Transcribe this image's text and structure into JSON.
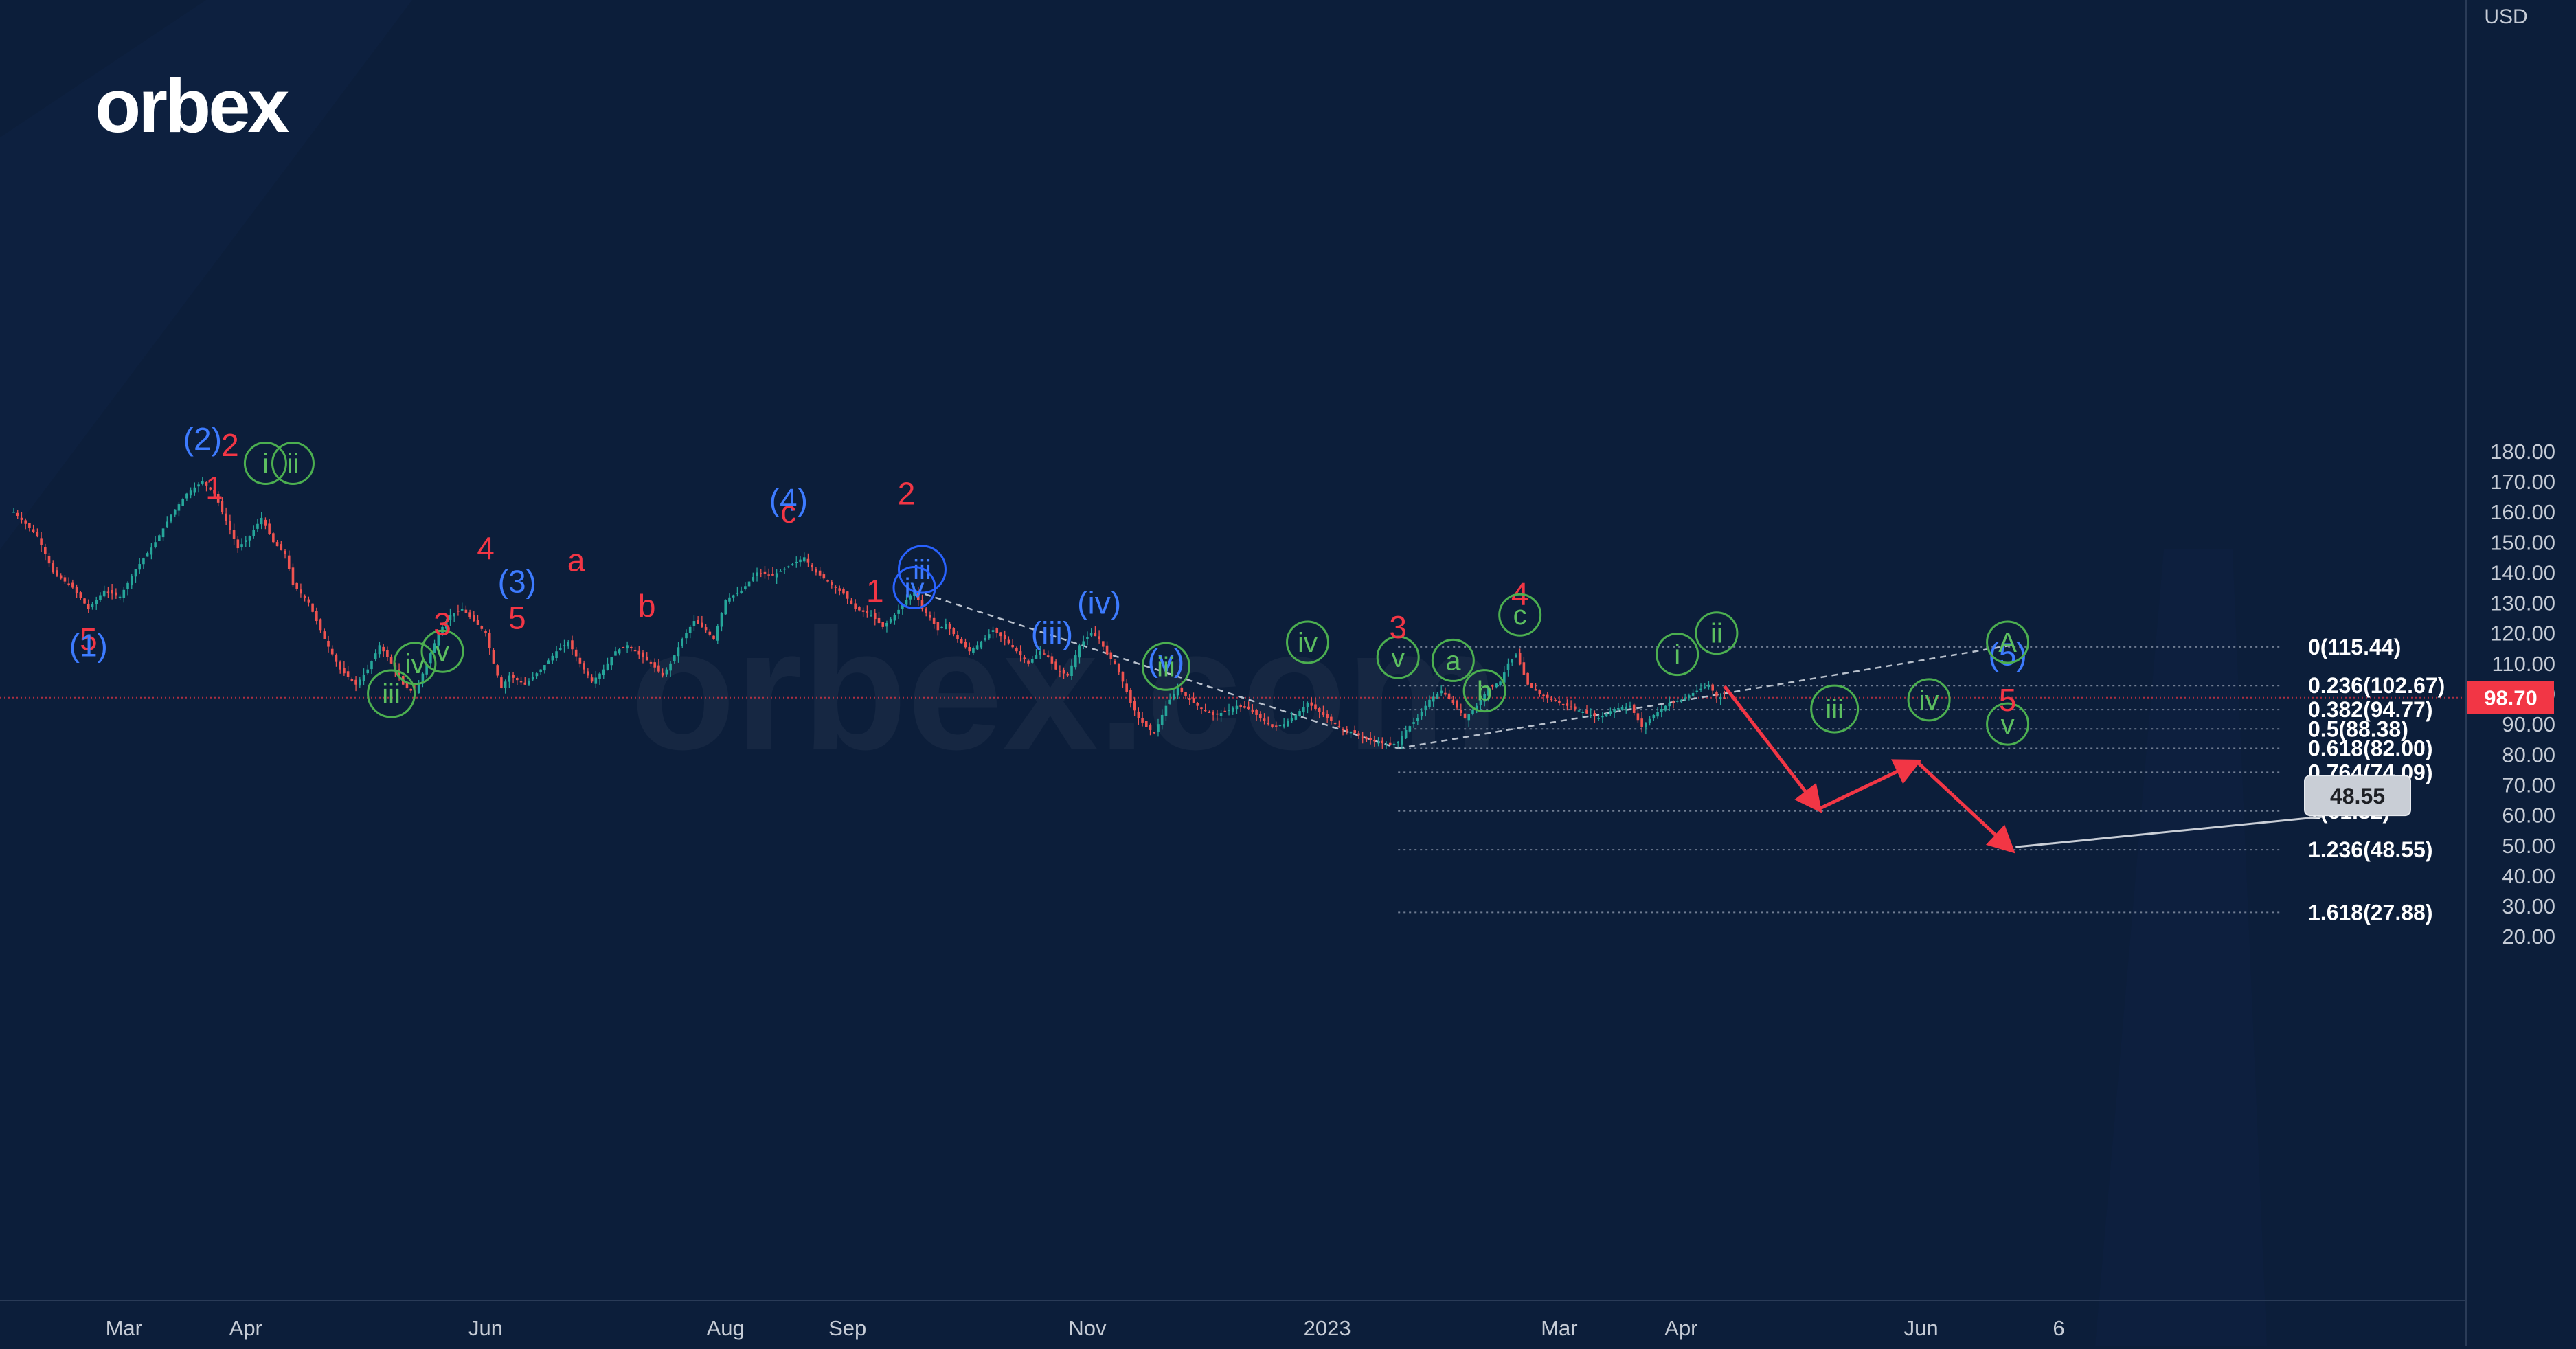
{
  "brand": {
    "logo_text": "orbex",
    "watermark_text": "orbex.com"
  },
  "chart_data": {
    "type": "candlestick",
    "currency": "USD",
    "ylim": [
      15,
      195
    ],
    "y_ticks": [
      20,
      30,
      40,
      50,
      60,
      70,
      80,
      90,
      100,
      110,
      120,
      130,
      140,
      150,
      160,
      170,
      180
    ],
    "x_ticks": [
      {
        "label": "Mar",
        "day": 28
      },
      {
        "label": "Apr",
        "day": 59
      },
      {
        "label": "Jun",
        "day": 120
      },
      {
        "label": "Aug",
        "day": 181
      },
      {
        "label": "Sep",
        "day": 212
      },
      {
        "label": "Nov",
        "day": 273
      },
      {
        "label": "2023",
        "day": 334
      },
      {
        "label": "Mar",
        "day": 393
      },
      {
        "label": "Apr",
        "day": 424
      },
      {
        "label": "Jun",
        "day": 485
      },
      {
        "label": "6",
        "day": 520
      }
    ],
    "current_price": {
      "label": "98.70",
      "value": 98.7
    },
    "target_tag": {
      "label": "48.55",
      "value": 48.55
    },
    "price_path": [
      [
        0,
        160
      ],
      [
        6,
        152
      ],
      [
        10,
        140
      ],
      [
        15,
        135
      ],
      [
        19,
        128
      ],
      [
        23,
        134
      ],
      [
        27,
        132
      ],
      [
        31,
        141
      ],
      [
        36,
        150
      ],
      [
        40,
        159
      ],
      [
        44,
        166
      ],
      [
        48,
        170
      ],
      [
        51,
        166
      ],
      [
        54,
        157
      ],
      [
        57,
        148
      ],
      [
        60,
        152
      ],
      [
        63,
        158
      ],
      [
        66,
        150
      ],
      [
        69,
        146
      ],
      [
        71,
        136
      ],
      [
        75,
        130
      ],
      [
        79,
        118
      ],
      [
        83,
        108
      ],
      [
        87,
        103
      ],
      [
        90,
        108
      ],
      [
        93,
        116
      ],
      [
        96,
        110
      ],
      [
        99,
        103
      ],
      [
        102,
        100
      ],
      [
        105,
        110
      ],
      [
        108,
        120
      ],
      [
        111,
        126
      ],
      [
        114,
        128
      ],
      [
        117,
        124
      ],
      [
        120,
        120
      ],
      [
        122,
        110
      ],
      [
        124,
        102
      ],
      [
        126,
        106
      ],
      [
        130,
        103
      ],
      [
        134,
        108
      ],
      [
        138,
        114
      ],
      [
        141,
        117
      ],
      [
        144,
        110
      ],
      [
        147,
        104
      ],
      [
        150,
        108
      ],
      [
        153,
        114
      ],
      [
        156,
        116
      ],
      [
        159,
        113
      ],
      [
        162,
        110
      ],
      [
        165,
        106
      ],
      [
        167,
        110
      ],
      [
        170,
        118
      ],
      [
        173,
        124
      ],
      [
        176,
        121
      ],
      [
        178,
        118
      ],
      [
        181,
        131
      ],
      [
        185,
        134
      ],
      [
        189,
        140
      ],
      [
        193,
        139
      ],
      [
        197,
        142
      ],
      [
        201,
        145
      ],
      [
        204,
        140
      ],
      [
        208,
        136
      ],
      [
        211,
        133
      ],
      [
        214,
        128
      ],
      [
        218,
        126
      ],
      [
        221,
        122
      ],
      [
        224,
        126
      ],
      [
        227,
        131
      ],
      [
        229,
        134
      ],
      [
        231,
        128
      ],
      [
        233,
        125
      ],
      [
        235,
        121
      ],
      [
        237,
        123
      ],
      [
        240,
        118
      ],
      [
        243,
        114
      ],
      [
        246,
        117
      ],
      [
        249,
        121
      ],
      [
        252,
        118
      ],
      [
        255,
        114
      ],
      [
        258,
        110
      ],
      [
        261,
        114
      ],
      [
        263,
        112
      ],
      [
        265,
        108
      ],
      [
        268,
        106
      ],
      [
        271,
        116
      ],
      [
        274,
        120
      ],
      [
        276,
        118
      ],
      [
        278,
        113
      ],
      [
        280,
        110
      ],
      [
        282,
        104
      ],
      [
        284,
        97
      ],
      [
        286,
        92
      ],
      [
        288,
        89
      ],
      [
        290,
        87
      ],
      [
        293,
        96
      ],
      [
        296,
        102
      ],
      [
        299,
        98
      ],
      [
        302,
        95
      ],
      [
        305,
        93
      ],
      [
        308,
        94
      ],
      [
        311,
        96
      ],
      [
        314,
        95
      ],
      [
        317,
        92
      ],
      [
        320,
        89
      ],
      [
        323,
        90
      ],
      [
        326,
        93
      ],
      [
        329,
        97
      ],
      [
        332,
        94
      ],
      [
        335,
        91
      ],
      [
        338,
        88
      ],
      [
        341,
        87
      ],
      [
        344,
        85
      ],
      [
        347,
        84
      ],
      [
        350,
        83
      ],
      [
        352,
        84
      ],
      [
        354,
        88
      ],
      [
        357,
        92
      ],
      [
        360,
        98
      ],
      [
        363,
        101
      ],
      [
        366,
        97
      ],
      [
        369,
        92
      ],
      [
        372,
        96
      ],
      [
        375,
        102
      ],
      [
        378,
        104
      ],
      [
        380,
        110
      ],
      [
        382,
        113
      ],
      [
        385,
        103
      ],
      [
        388,
        100
      ],
      [
        391,
        98
      ],
      [
        395,
        96
      ],
      [
        399,
        94
      ],
      [
        403,
        92
      ],
      [
        407,
        95
      ],
      [
        411,
        96
      ],
      [
        414,
        89
      ],
      [
        417,
        93
      ],
      [
        421,
        97
      ],
      [
        424,
        98
      ],
      [
        428,
        101
      ],
      [
        431,
        103
      ],
      [
        433,
        99
      ],
      [
        435,
        98.7
      ]
    ],
    "projection": [
      [
        435,
        102.5
      ],
      [
        459,
        62
      ],
      [
        484,
        77.5
      ],
      [
        508,
        48.5
      ]
    ],
    "fib_levels": [
      {
        "label": "0(115.44)",
        "value": 115.44
      },
      {
        "label": "0.236(102.67)",
        "value": 102.67
      },
      {
        "label": "0.382(94.77)",
        "value": 94.77
      },
      {
        "label": "0.5(88.38)",
        "value": 88.38
      },
      {
        "label": "0.618(82.00)",
        "value": 82.0
      },
      {
        "label": "0.764(74.09)",
        "value": 74.09
      },
      {
        "label": "1(61.32)",
        "value": 61.32
      },
      {
        "label": "1.236(48.55)",
        "value": 48.55
      },
      {
        "label": "1.618(27.88)",
        "value": 27.88
      }
    ],
    "trend_lines": [
      {
        "from": [
          229,
          134
        ],
        "to": [
          352,
          82
        ]
      },
      {
        "from": [
          352,
          82
        ],
        "to": [
          508,
          116
        ]
      }
    ],
    "wave_labels": [
      {
        "text": "5",
        "day": 19,
        "price": 118,
        "color": "red",
        "circled": false
      },
      {
        "text": "(1)",
        "day": 19,
        "price": 116,
        "color": "blue",
        "circled": false
      },
      {
        "text": "(2)",
        "day": 48,
        "price": 184,
        "color": "blue",
        "circled": false
      },
      {
        "text": "2",
        "day": 55,
        "price": 182,
        "color": "red",
        "circled": false
      },
      {
        "text": "1",
        "day": 51,
        "price": 168,
        "color": "red",
        "circled": false
      },
      {
        "text": "ii",
        "day": 71,
        "price": 176,
        "color": "green",
        "circled": true
      },
      {
        "text": "i",
        "day": 64,
        "price": 176,
        "color": "green",
        "circled": true
      },
      {
        "text": "iv",
        "day": 102,
        "price": 110,
        "color": "green",
        "circled": true
      },
      {
        "text": "4",
        "day": 120,
        "price": 148,
        "color": "red",
        "circled": false
      },
      {
        "text": "iii",
        "day": 96,
        "price": 100,
        "color": "green",
        "circled": true
      },
      {
        "text": "v",
        "day": 109,
        "price": 114,
        "color": "green",
        "circled": true
      },
      {
        "text": "3",
        "day": 109,
        "price": 123,
        "color": "red",
        "circled": false
      },
      {
        "text": "5",
        "day": 128,
        "price": 125,
        "color": "red",
        "circled": false
      },
      {
        "text": "(3)",
        "day": 128,
        "price": 137,
        "color": "blue",
        "circled": false
      },
      {
        "text": "a",
        "day": 143,
        "price": 144,
        "color": "red",
        "circled": false
      },
      {
        "text": "b",
        "day": 161,
        "price": 129,
        "color": "red",
        "circled": false
      },
      {
        "text": "(4)",
        "day": 197,
        "price": 164,
        "color": "blue",
        "circled": false
      },
      {
        "text": "c",
        "day": 197,
        "price": 160,
        "color": "red",
        "circled": false
      },
      {
        "text": "2",
        "day": 227,
        "price": 166,
        "color": "red",
        "circled": false
      },
      {
        "text": "iii",
        "day": 231,
        "price": 141,
        "color": "blue",
        "circled": true
      },
      {
        "text": "1",
        "day": 219,
        "price": 134,
        "color": "red",
        "circled": false
      },
      {
        "text": "iv",
        "day": 229,
        "price": 135,
        "color": "blue",
        "circled": true
      },
      {
        "text": "(iv)",
        "day": 276,
        "price": 130,
        "color": "blue",
        "circled": false
      },
      {
        "text": "(iii)",
        "day": 264,
        "price": 120,
        "color": "blue",
        "circled": false
      },
      {
        "text": "iv",
        "day": 329,
        "price": 117,
        "color": "green",
        "circled": true
      },
      {
        "text": "(v)",
        "day": 293,
        "price": 111,
        "color": "blue",
        "circled": false
      },
      {
        "text": "iii",
        "day": 293,
        "price": 109,
        "color": "green",
        "circled": true
      },
      {
        "text": "v",
        "day": 352,
        "price": 112,
        "color": "green",
        "circled": true
      },
      {
        "text": "3",
        "day": 352,
        "price": 122,
        "color": "red",
        "circled": false
      },
      {
        "text": "4",
        "day": 383,
        "price": 133,
        "color": "red",
        "circled": false
      },
      {
        "text": "c",
        "day": 383,
        "price": 126,
        "color": "green",
        "circled": true
      },
      {
        "text": "a",
        "day": 366,
        "price": 111,
        "color": "green",
        "circled": true
      },
      {
        "text": "b",
        "day": 374,
        "price": 101,
        "color": "green",
        "circled": true
      },
      {
        "text": "ii",
        "day": 433,
        "price": 120,
        "color": "green",
        "circled": true
      },
      {
        "text": "i",
        "day": 423,
        "price": 113,
        "color": "green",
        "circled": true
      },
      {
        "text": "iv",
        "day": 487,
        "price": 98,
        "color": "green",
        "circled": true
      },
      {
        "text": "iii",
        "day": 463,
        "price": 95,
        "color": "green",
        "circled": true
      },
      {
        "text": "v",
        "day": 507,
        "price": 90,
        "color": "green",
        "circled": true
      },
      {
        "text": "5",
        "day": 507,
        "price": 98,
        "color": "red",
        "circled": false
      },
      {
        "text": "(5)",
        "day": 507,
        "price": 113,
        "color": "blue",
        "circled": false
      },
      {
        "text": "A",
        "day": 507,
        "price": 117,
        "color": "green",
        "circled": true
      }
    ]
  }
}
